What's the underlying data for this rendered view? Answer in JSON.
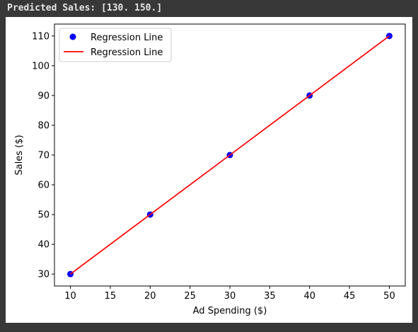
{
  "console": {
    "output_text": "Predicted Sales: [130. 150.]"
  },
  "chart_data": {
    "type": "scatter",
    "title": "",
    "xlabel": "Ad Spending ($)",
    "ylabel": "Sales ($)",
    "xlim": [
      8,
      52
    ],
    "ylim": [
      26,
      114
    ],
    "xticks": [
      10,
      15,
      20,
      25,
      30,
      35,
      40,
      45,
      50
    ],
    "yticks": [
      30,
      40,
      50,
      60,
      70,
      80,
      90,
      100,
      110
    ],
    "grid": false,
    "legend_position": "top-left",
    "series": [
      {
        "name": "Regression Line",
        "kind": "scatter",
        "color": "#0000ff",
        "x": [
          10,
          20,
          30,
          40,
          50
        ],
        "y": [
          30,
          50,
          70,
          90,
          110
        ]
      },
      {
        "name": "Regression Line",
        "kind": "line",
        "color": "#ff0000",
        "x": [
          10,
          20,
          30,
          40,
          50
        ],
        "y": [
          30,
          50,
          70,
          90,
          110
        ]
      }
    ]
  }
}
